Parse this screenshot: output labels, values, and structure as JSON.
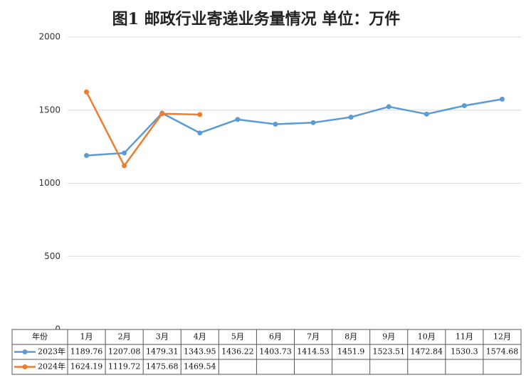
{
  "chart_data": {
    "type": "line",
    "title": "图1  邮政行业寄递业务量情况        单位：万件",
    "table_header": "年份",
    "categories": [
      "1月",
      "2月",
      "3月",
      "4月",
      "5月",
      "6月",
      "7月",
      "8月",
      "9月",
      "10月",
      "11月",
      "12月"
    ],
    "series": [
      {
        "name": "2023年",
        "color": "#5b9bd5",
        "values": [
          1189.76,
          1207.08,
          1479.31,
          1343.95,
          1436.22,
          1403.73,
          1414.53,
          1451.9,
          1523.51,
          1472.84,
          1530.3,
          1574.68
        ]
      },
      {
        "name": "2024年",
        "color": "#ed7d31",
        "values": [
          1624.19,
          1119.72,
          1475.68,
          1469.54,
          null,
          null,
          null,
          null,
          null,
          null,
          null,
          null
        ]
      }
    ],
    "ylim": [
      0,
      2000
    ],
    "yticks": [
      0,
      500,
      1000,
      1500,
      2000
    ],
    "grid": true
  }
}
